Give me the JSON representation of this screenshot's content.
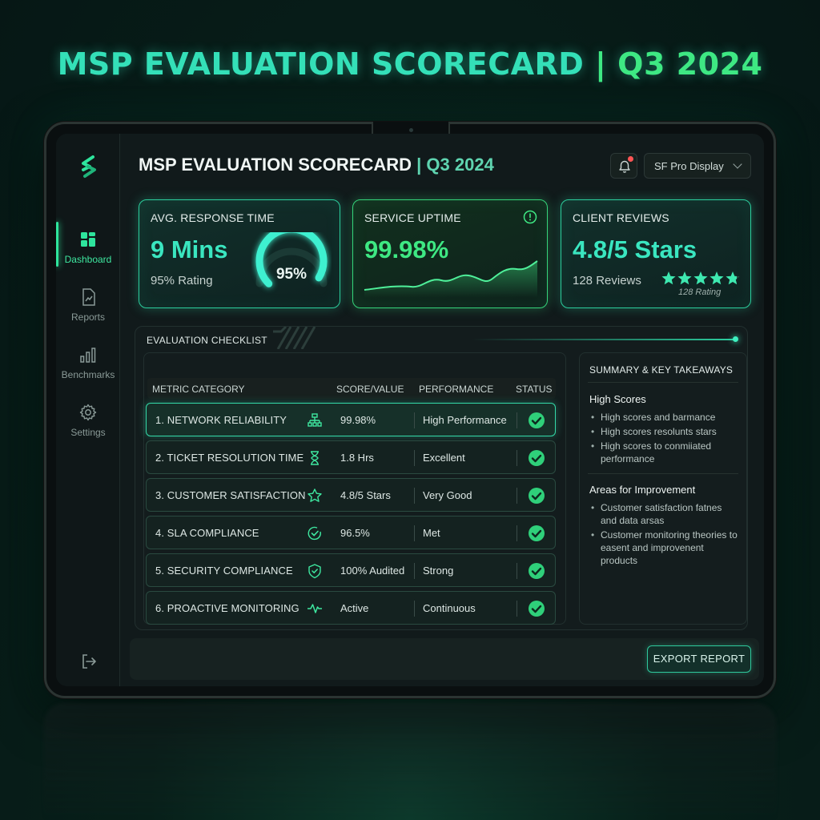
{
  "page": {
    "title_main": "MSP EVALUATION SCORECARD",
    "title_sep": " | ",
    "title_period": "Q3 2024"
  },
  "colors": {
    "accent_teal": "#2ccf9e",
    "accent_green": "#3ee883",
    "check_green": "#2fd07a",
    "bg": "#061715"
  },
  "sidebar": {
    "logo": "brand-s-icon",
    "items": [
      {
        "label": "Dashboard",
        "icon": "dashboard-icon",
        "active": true
      },
      {
        "label": "Reports",
        "icon": "report-icon",
        "active": false
      },
      {
        "label": "Benchmarks",
        "icon": "bar-chart-icon",
        "active": false
      },
      {
        "label": "Settings",
        "icon": "gear-icon",
        "active": false
      }
    ],
    "logout_icon": "logout-icon"
  },
  "header": {
    "title": "MSP EVALUATION SCORECARD",
    "sep": " | ",
    "period": "Q3 2024",
    "bell_icon": "bell-icon",
    "font_select": "SF Pro Display"
  },
  "kpis": {
    "response": {
      "label": "AVG. RESPONSE TIME",
      "value": "9 Mins",
      "sub": "95% Rating",
      "gauge_text": "95%",
      "gauge_fraction": 0.95
    },
    "uptime": {
      "label": "SERVICE UPTIME",
      "value": "99.98%",
      "info_icon": "info-icon"
    },
    "reviews": {
      "label": "CLIENT REVIEWS",
      "value": "4.8/5 Stars",
      "sub": "128 Reviews",
      "stars_caption": "128 Rating",
      "rating": 4.8
    }
  },
  "checklist": {
    "tab_label": "EVALUATION CHECKLIST",
    "headers": {
      "metric": "METRIC CATEGORY",
      "score": "SCORE/VALUE",
      "performance": "PERFORMANCE",
      "status": "STATUS"
    },
    "rows": [
      {
        "metric": "1.  NETWORK RELIABILITY",
        "icon": "network-icon",
        "score": "99.98%",
        "performance": "High Performance"
      },
      {
        "metric": "2.  TICKET RESOLUTION TIME",
        "icon": "hourglass-icon",
        "score": "1.8 Hrs",
        "performance": "Excellent"
      },
      {
        "metric": "3.  CUSTOMER SATISFACTION",
        "icon": "star-icon",
        "score": "4.8/5 Stars",
        "performance": "Very Good"
      },
      {
        "metric": "4.  SLA COMPLIANCE",
        "icon": "check-circle-icon",
        "score": "96.5%",
        "performance": "Met"
      },
      {
        "metric": "5.  SECURITY COMPLIANCE",
        "icon": "shield-icon",
        "score": "100% Audited",
        "performance": "Strong"
      },
      {
        "metric": "6.  PROACTIVE MONITORING",
        "icon": "pulse-icon",
        "score": "Active",
        "performance": "Continuous"
      }
    ]
  },
  "summary": {
    "title": "SUMMARY & KEY TAKEAWAYS",
    "high_title": "High Scores",
    "high_items": [
      "High scores and barmance",
      "High scores resolunts stars",
      "High scores to conmiiated performance"
    ],
    "improve_title": "Areas for Improvement",
    "improve_items": [
      "Customer satisfaction fatnes and data arsas",
      "Customer monitoring theories to easent and improvenent products"
    ]
  },
  "footer": {
    "export_label": "EXPORT REPORT"
  }
}
